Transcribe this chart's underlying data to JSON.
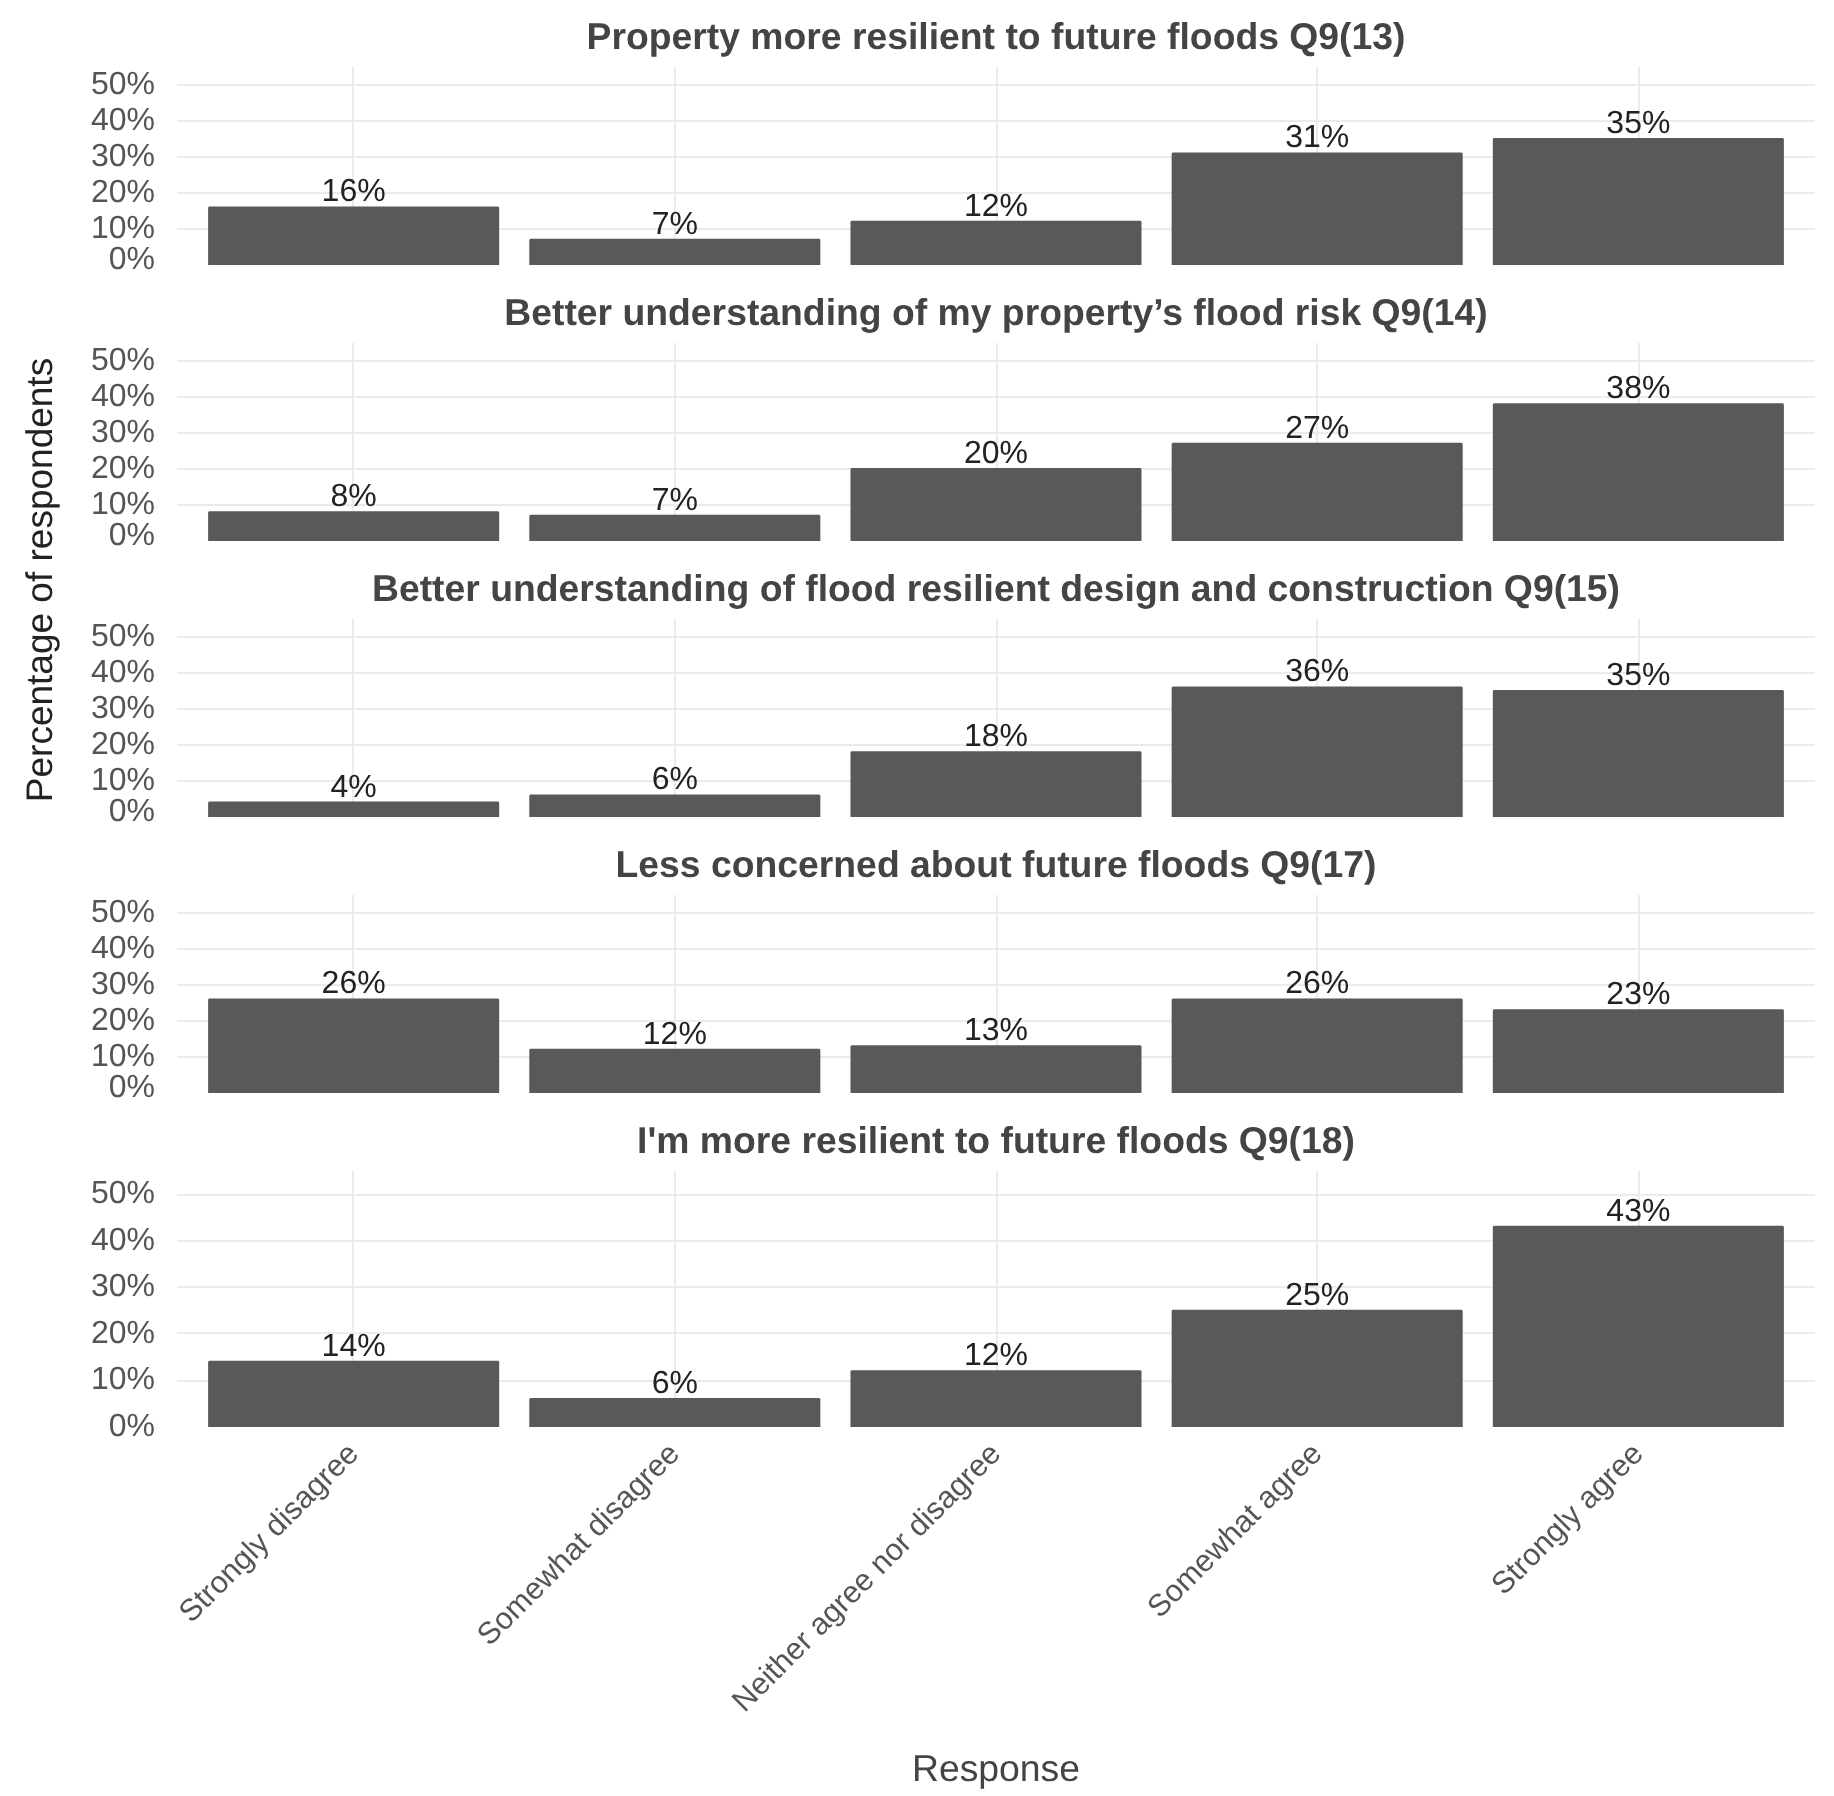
{
  "chart_data": [
    {
      "type": "bar",
      "title": "Property more resilient to future floods Q9(13)",
      "categories": [
        null,
        null,
        null,
        null,
        null
      ],
      "values": [
        16,
        7,
        12,
        31,
        35
      ],
      "value_labels": [
        "16%",
        "7%",
        "12%",
        "31%",
        "35%"
      ],
      "color": "#595959",
      "ylim": [
        0,
        55
      ],
      "yticks": [
        {
          "value": 0,
          "label": "0%"
        },
        {
          "value": 10,
          "label": "10%"
        },
        {
          "value": 20,
          "label": "20%"
        },
        {
          "value": 30,
          "label": "30%"
        },
        {
          "value": 40,
          "label": "40%"
        },
        {
          "value": 50,
          "label": "50%"
        }
      ],
      "grid": true,
      "tick_labels": "y"
    },
    {
      "type": "bar",
      "title": "Better understanding of my property’s flood risk Q9(14)",
      "categories": [
        null,
        null,
        null,
        null,
        null
      ],
      "values": [
        8,
        7,
        20,
        27,
        38
      ],
      "value_labels": [
        "8%",
        "7%",
        "20%",
        "27%",
        "38%"
      ],
      "color": "#595959",
      "ylim": [
        0,
        55
      ],
      "yticks": [
        {
          "value": 0,
          "label": "0%"
        },
        {
          "value": 10,
          "label": "10%"
        },
        {
          "value": 20,
          "label": "20%"
        },
        {
          "value": 30,
          "label": "30%"
        },
        {
          "value": 40,
          "label": "40%"
        },
        {
          "value": 50,
          "label": "50%"
        }
      ],
      "grid": true,
      "tick_labels": "y"
    },
    {
      "type": "bar",
      "title": "Better understanding of flood resilient design and construction Q9(15)",
      "ylabel": "Percentage of respondents",
      "categories": [
        null,
        null,
        null,
        null,
        null
      ],
      "values": [
        4,
        6,
        18,
        36,
        35
      ],
      "value_labels": [
        "4%",
        "6%",
        "18%",
        "36%",
        "35%"
      ],
      "color": "#595959",
      "ylim": [
        0,
        55
      ],
      "yticks": [
        {
          "value": 0,
          "label": "0%"
        },
        {
          "value": 10,
          "label": "10%"
        },
        {
          "value": 20,
          "label": "20%"
        },
        {
          "value": 30,
          "label": "30%"
        },
        {
          "value": 40,
          "label": "40%"
        },
        {
          "value": 50,
          "label": "50%"
        }
      ],
      "grid": true,
      "tick_labels": "y"
    },
    {
      "type": "bar",
      "title": "Less concerned about future floods Q9(17)",
      "categories": [
        null,
        null,
        null,
        null,
        null
      ],
      "values": [
        26,
        12,
        13,
        26,
        23
      ],
      "value_labels": [
        "26%",
        "12%",
        "13%",
        "26%",
        "23%"
      ],
      "color": "#595959",
      "ylim": [
        0,
        55
      ],
      "yticks": [
        {
          "value": 0,
          "label": "0%"
        },
        {
          "value": 10,
          "label": "10%"
        },
        {
          "value": 20,
          "label": "20%"
        },
        {
          "value": 30,
          "label": "30%"
        },
        {
          "value": 40,
          "label": "40%"
        },
        {
          "value": 50,
          "label": "50%"
        }
      ],
      "grid": true,
      "tick_labels": "y"
    },
    {
      "type": "bar",
      "title": "I'm more resilient to future floods Q9(18)",
      "xlabel": "Response",
      "categories": [
        "Strongly disagree",
        "Somewhat disagree",
        "Neither agree nor disagree",
        "Somewhat agree",
        "Strongly agree"
      ],
      "values": [
        14,
        6,
        12,
        25,
        43
      ],
      "value_labels": [
        "14%",
        "6%",
        "12%",
        "25%",
        "43%"
      ],
      "color": "#595959",
      "ylim": [
        0,
        55
      ],
      "yticks": [
        {
          "value": 0,
          "label": "0%"
        },
        {
          "value": 10,
          "label": "10%"
        },
        {
          "value": 20,
          "label": "20%"
        },
        {
          "value": 30,
          "label": "30%"
        },
        {
          "value": 40,
          "label": "40%"
        },
        {
          "value": 50,
          "label": "50%"
        }
      ],
      "grid": true
    }
  ]
}
